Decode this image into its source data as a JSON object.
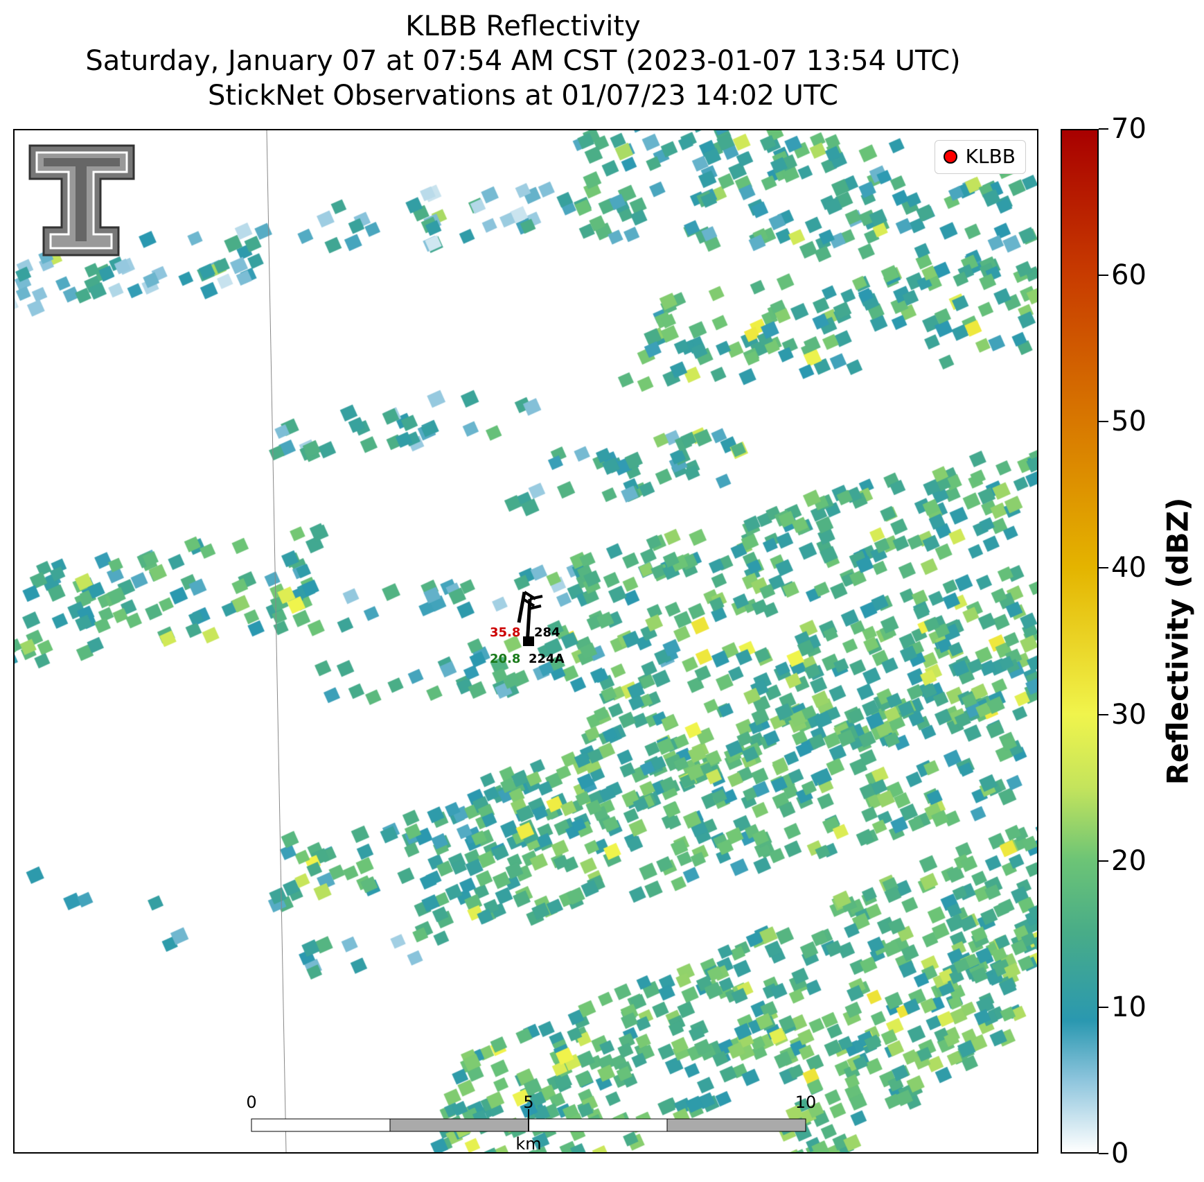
{
  "title": {
    "line1": "KLBB Reflectivity",
    "line2": "Saturday, January 07 at 07:54 AM CST (2023-01-07 13:54 UTC)",
    "line3": "StickNet Observations at 01/07/23 14:02 UTC"
  },
  "legend": {
    "label": "KLBB",
    "marker_color": "#ff0000"
  },
  "colorbar": {
    "title": "Reflectivity (dBZ)",
    "min": 0,
    "max": 70,
    "ticks": [
      0,
      10,
      20,
      30,
      40,
      50,
      60,
      70
    ],
    "stops": [
      {
        "v": 0,
        "c": "#ffffff"
      },
      {
        "v": 5,
        "c": "#8cc4dc"
      },
      {
        "v": 9,
        "c": "#2a98b0"
      },
      {
        "v": 15,
        "c": "#48ac88"
      },
      {
        "v": 20,
        "c": "#6cc476"
      },
      {
        "v": 25,
        "c": "#c4e45c"
      },
      {
        "v": 30,
        "c": "#f0f44c"
      },
      {
        "v": 40,
        "c": "#e4b400"
      },
      {
        "v": 50,
        "c": "#d87800"
      },
      {
        "v": 60,
        "c": "#c83c00"
      },
      {
        "v": 70,
        "c": "#a80000"
      }
    ]
  },
  "stations": [
    {
      "id": "284",
      "value": "35.8",
      "value_color": "#cc0000"
    },
    {
      "id": "224A",
      "value": "20.8",
      "value_color": "#1a7a1a"
    }
  ],
  "scale_bar": {
    "ticks": [
      "0",
      "5",
      "10"
    ],
    "unit": "km"
  },
  "logo": {
    "name": "texas-tech-double-t-logo"
  }
}
